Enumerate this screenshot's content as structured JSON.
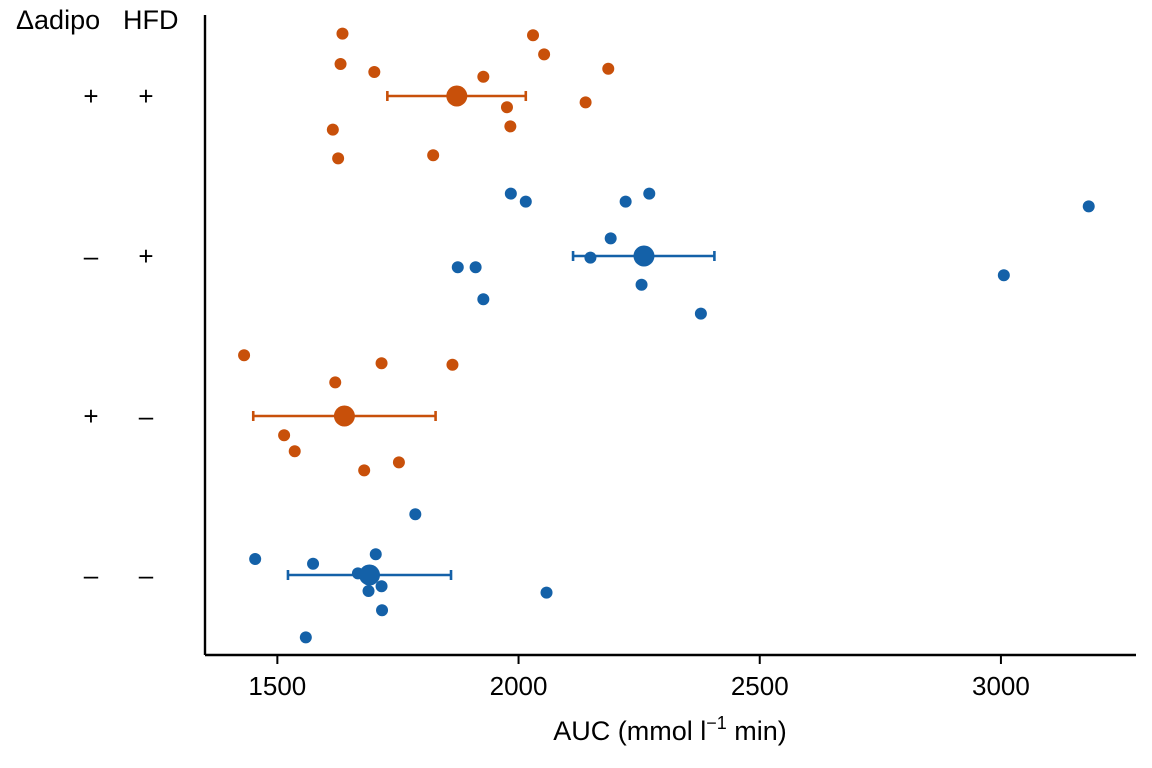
{
  "chart_data": {
    "type": "scatter",
    "title": "",
    "xlabel": {
      "main": "AUC (mmol l",
      "superscript": "−1",
      "tail": " min)"
    },
    "ylabel": "",
    "xlim": [
      1350,
      3280
    ],
    "xticks": [
      1500,
      2000,
      2500,
      3000
    ],
    "xtick_labels": [
      "1500",
      "2000",
      "2500",
      "3000"
    ],
    "grid": false,
    "legend": "none",
    "row_headers": [
      "Δadipo",
      "HFD"
    ],
    "colors": {
      "adipo_plus": "#C8500A",
      "adipo_minus": "#1461A8"
    },
    "groups": [
      {
        "adipo": "+",
        "hfd": "+",
        "color": "#C8500A",
        "mean": 1872,
        "ci": [
          1728,
          2015
        ],
        "points": [
          {
            "x": 1635,
            "jitter": 0.39
          },
          {
            "x": 2030,
            "jitter": 0.38
          },
          {
            "x": 2053,
            "jitter": 0.26
          },
          {
            "x": 1631,
            "jitter": 0.2
          },
          {
            "x": 1701,
            "jitter": 0.15
          },
          {
            "x": 1927,
            "jitter": 0.12
          },
          {
            "x": 2186,
            "jitter": 0.17
          },
          {
            "x": 2139,
            "jitter": -0.04
          },
          {
            "x": 1976,
            "jitter": -0.07
          },
          {
            "x": 1983,
            "jitter": -0.19
          },
          {
            "x": 1615,
            "jitter": -0.21
          },
          {
            "x": 1823,
            "jitter": -0.37
          },
          {
            "x": 1626,
            "jitter": -0.39
          }
        ]
      },
      {
        "adipo": "–",
        "hfd": "+",
        "color": "#1461A8",
        "mean": 2260,
        "ci": [
          2113,
          2406
        ],
        "points": [
          {
            "x": 1984,
            "jitter": 0.39
          },
          {
            "x": 2271,
            "jitter": 0.39
          },
          {
            "x": 2015,
            "jitter": 0.34
          },
          {
            "x": 2222,
            "jitter": 0.34
          },
          {
            "x": 3182,
            "jitter": 0.31
          },
          {
            "x": 2191,
            "jitter": 0.11
          },
          {
            "x": 2149,
            "jitter": -0.01
          },
          {
            "x": 1874,
            "jitter": -0.07
          },
          {
            "x": 1911,
            "jitter": -0.07
          },
          {
            "x": 3006,
            "jitter": -0.12
          },
          {
            "x": 2255,
            "jitter": -0.18
          },
          {
            "x": 1927,
            "jitter": -0.27
          },
          {
            "x": 2378,
            "jitter": -0.36
          }
        ]
      },
      {
        "adipo": "+",
        "hfd": "–",
        "color": "#C8500A",
        "mean": 1639,
        "ci": [
          1450,
          1828
        ],
        "points": [
          {
            "x": 1431,
            "jitter": 0.38
          },
          {
            "x": 1716,
            "jitter": 0.33
          },
          {
            "x": 1863,
            "jitter": 0.32
          },
          {
            "x": 1620,
            "jitter": 0.21
          },
          {
            "x": 1514,
            "jitter": -0.12
          },
          {
            "x": 1536,
            "jitter": -0.22
          },
          {
            "x": 1752,
            "jitter": -0.29
          },
          {
            "x": 1680,
            "jitter": -0.34
          }
        ]
      },
      {
        "adipo": "–",
        "hfd": "–",
        "color": "#1461A8",
        "mean": 1691,
        "ci": [
          1522,
          1860
        ],
        "points": [
          {
            "x": 1786,
            "jitter": 0.38
          },
          {
            "x": 1704,
            "jitter": 0.13
          },
          {
            "x": 1454,
            "jitter": 0.1
          },
          {
            "x": 1574,
            "jitter": 0.07
          },
          {
            "x": 1667,
            "jitter": 0.01
          },
          {
            "x": 1716,
            "jitter": -0.07
          },
          {
            "x": 1689,
            "jitter": -0.1
          },
          {
            "x": 2058,
            "jitter": -0.11
          },
          {
            "x": 1717,
            "jitter": -0.22
          },
          {
            "x": 1559,
            "jitter": -0.39
          }
        ]
      }
    ]
  }
}
